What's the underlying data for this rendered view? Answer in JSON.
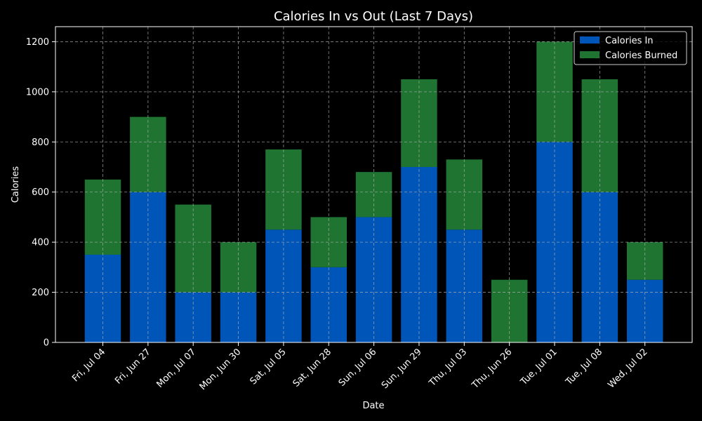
{
  "chart_data": {
    "type": "bar",
    "stacked": true,
    "title": "Calories In vs Out (Last 7 Days)",
    "xlabel": "Date",
    "ylabel": "Calories",
    "ylim": [
      0,
      1260
    ],
    "yticks": [
      0,
      200,
      400,
      600,
      800,
      1000,
      1200
    ],
    "grid": true,
    "legend_position": "top-right",
    "categories": [
      "Fri, Jul 04",
      "Fri, Jun 27",
      "Mon, Jul 07",
      "Mon, Jun 30",
      "Sat, Jul 05",
      "Sat, Jun 28",
      "Sun, Jul 06",
      "Sun, Jun 29",
      "Thu, Jul 03",
      "Thu, Jun 26",
      "Tue, Jul 01",
      "Tue, Jul 08",
      "Wed, Jul 02"
    ],
    "series": [
      {
        "name": "Calories In",
        "color": "#0055b8",
        "values": [
          350,
          600,
          200,
          200,
          450,
          300,
          500,
          700,
          450,
          0,
          800,
          600,
          250
        ]
      },
      {
        "name": "Calories Burned",
        "color": "#1e7430",
        "values": [
          300,
          300,
          350,
          200,
          320,
          200,
          180,
          350,
          280,
          250,
          400,
          450,
          150
        ]
      }
    ]
  }
}
